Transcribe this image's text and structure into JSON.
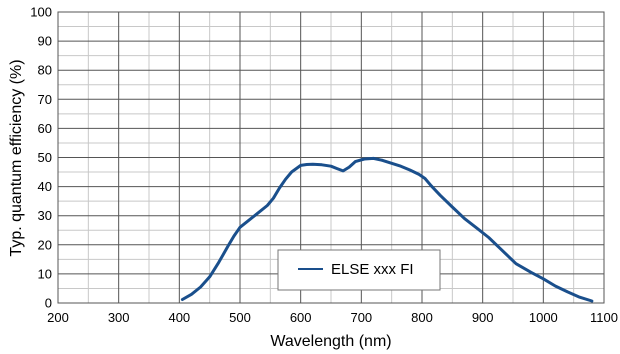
{
  "chart_data": {
    "type": "line",
    "xlabel": "Wavelength (nm)",
    "ylabel": "Typ. quantum efficiency (%)",
    "xlim": [
      200,
      1100
    ],
    "ylim": [
      0,
      100
    ],
    "x_ticks": [
      200,
      300,
      400,
      500,
      600,
      700,
      800,
      900,
      1000,
      1100
    ],
    "y_ticks": [
      0,
      10,
      20,
      30,
      40,
      50,
      60,
      70,
      80,
      90,
      100
    ],
    "x_minor_step": 50,
    "y_minor_step": 5,
    "grid": true,
    "legend_position": "bottom-center",
    "series": [
      {
        "name": "ELSE xxx FI",
        "color": "#1a4f8c",
        "x": [
          405,
          420,
          435,
          450,
          465,
          480,
          490,
          500,
          515,
          530,
          545,
          555,
          565,
          575,
          585,
          600,
          610,
          620,
          635,
          650,
          660,
          670,
          680,
          690,
          705,
          720,
          735,
          750,
          765,
          780,
          795,
          805,
          815,
          830,
          850,
          870,
          890,
          910,
          930,
          955,
          980,
          1000,
          1020,
          1040,
          1060,
          1080
        ],
        "y": [
          1.2,
          3,
          5.5,
          9,
          14,
          19.5,
          23,
          26,
          28.5,
          31,
          33.5,
          36,
          39.5,
          42.5,
          45,
          47.3,
          47.6,
          47.7,
          47.5,
          47,
          46.2,
          45.4,
          46.7,
          48.6,
          49.5,
          49.7,
          49,
          48,
          47,
          45.7,
          44.2,
          42.8,
          40.3,
          37,
          33,
          29,
          25.8,
          22.5,
          18.5,
          13.5,
          10.5,
          8.3,
          5.8,
          3.8,
          2,
          0.7
        ]
      }
    ]
  }
}
